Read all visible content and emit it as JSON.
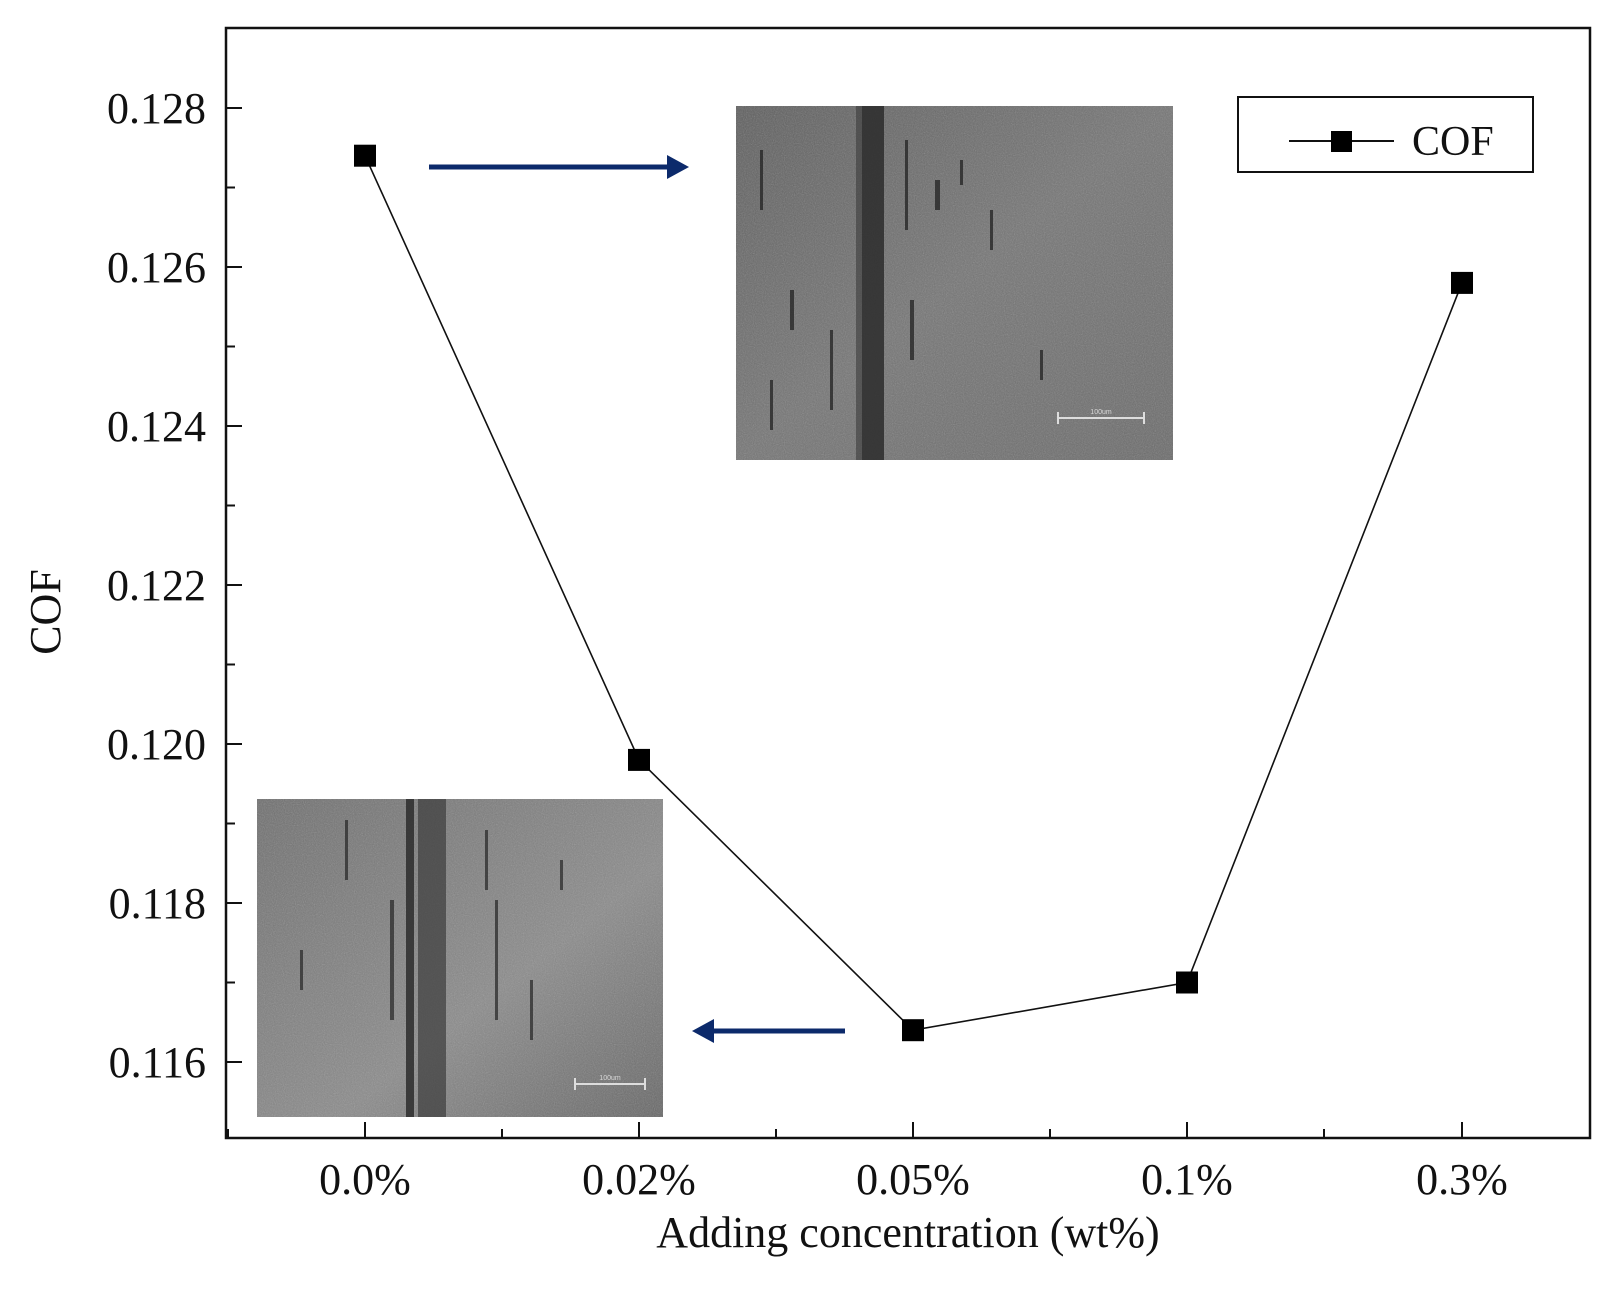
{
  "chart_data": {
    "type": "line",
    "title": "",
    "xlabel": "Adding concentration (wt%)",
    "ylabel": "COF",
    "categories": [
      "0.0%",
      "0.02%",
      "0.05%",
      "0.1%",
      "0.3%"
    ],
    "series": [
      {
        "name": "COF",
        "marker": "square",
        "values": [
          0.1274,
          0.1198,
          0.1164,
          0.117,
          0.1258
        ]
      }
    ],
    "ylim": [
      0.115,
      0.129
    ],
    "yticks": [
      "0.116",
      "0.118",
      "0.120",
      "0.122",
      "0.124",
      "0.126",
      "0.128"
    ],
    "legend": {
      "label": "COF",
      "position": "top-right"
    },
    "grid": false,
    "insets": [
      {
        "name": "wear-scar-micrograph-0.0%",
        "points_to": "0.0%",
        "scale_bar_label": "100um"
      },
      {
        "name": "wear-scar-micrograph-0.05%",
        "points_to": "0.05%",
        "scale_bar_label": "100um"
      }
    ],
    "colors": {
      "series": "#111111",
      "marker": "#000000",
      "arrow": "#0c2a6b"
    }
  }
}
